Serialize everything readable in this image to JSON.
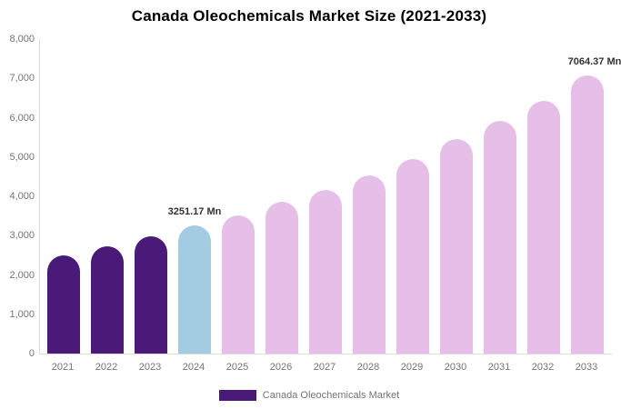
{
  "title": "Canada Oleochemicals Market Size (2021-2033)",
  "legend": {
    "label": "Canada Oleochemicals Market"
  },
  "colors": {
    "historical": "#4A1A78",
    "current": "#A3CBE1",
    "forecast": "#E6BFE9",
    "axis_line": "#dcdcdc",
    "tick_text": "#757575",
    "annotation_text": "#333333",
    "title_text": "#000000"
  },
  "chart_data": {
    "type": "bar",
    "title": "Canada Oleochemicals Market Size (2021-2033)",
    "xlabel": "",
    "ylabel": "",
    "unit": "Mn",
    "categories": [
      "2021",
      "2022",
      "2023",
      "2024",
      "2025",
      "2026",
      "2027",
      "2028",
      "2029",
      "2030",
      "2031",
      "2032",
      "2033"
    ],
    "values": [
      2490,
      2740,
      2980,
      3251.17,
      3520,
      3860,
      4160,
      4530,
      4950,
      5460,
      5920,
      6430,
      7064.37
    ],
    "bar_color_keys": [
      "historical",
      "historical",
      "historical",
      "current",
      "forecast",
      "forecast",
      "forecast",
      "forecast",
      "forecast",
      "forecast",
      "forecast",
      "forecast",
      "forecast"
    ],
    "series": [
      {
        "name": "Canada Oleochemicals Market",
        "color_key": "historical"
      }
    ],
    "annotations": [
      {
        "category": "2024",
        "text": "3251.17 Mn"
      },
      {
        "category": "2033",
        "text": "7064.37 Mn"
      }
    ],
    "ylim": [
      0,
      8000
    ],
    "ytick_interval": 1000,
    "ytick_labels": [
      "0",
      "1,000",
      "2,000",
      "3,000",
      "4,000",
      "5,000",
      "6,000",
      "7,000",
      "8,000"
    ],
    "grid": false,
    "legend_position": "bottom-center"
  }
}
